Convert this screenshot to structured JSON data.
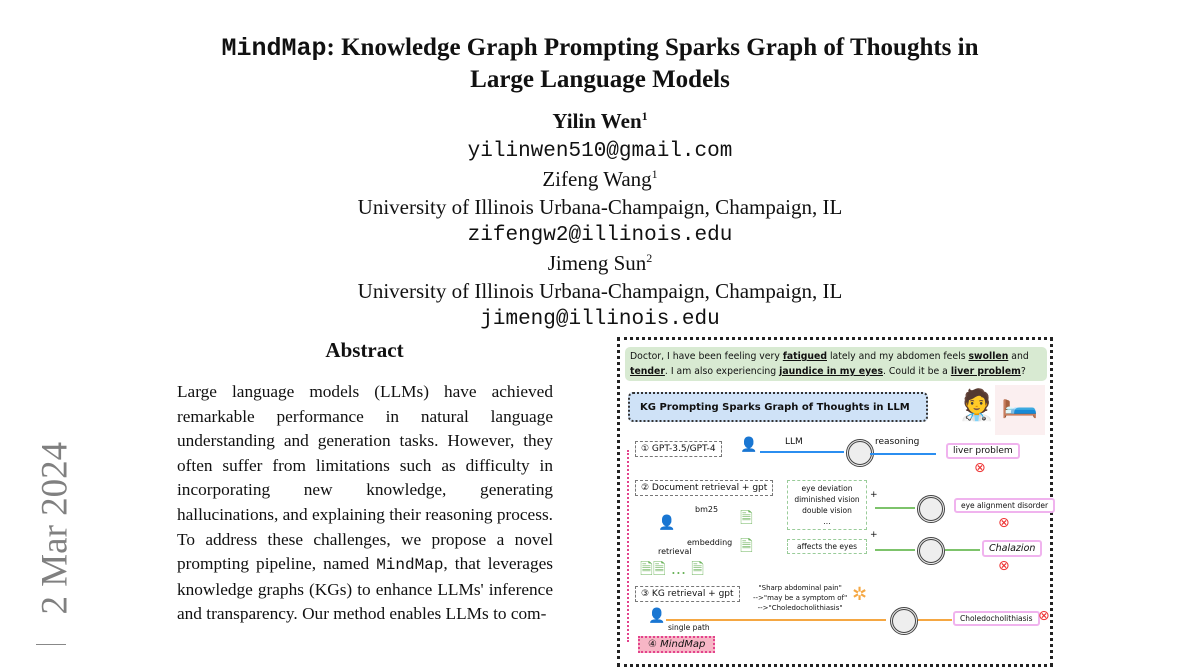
{
  "title": {
    "name_mono": "MindMap",
    "line1_rest": ": Knowledge Graph Prompting Sparks Graph of Thoughts in",
    "line2": "Large Language Models"
  },
  "authors": [
    {
      "name": "Yilin Wen",
      "sup": "1",
      "email": "yilinwen510@gmail.com"
    },
    {
      "name": "Zifeng Wang",
      "sup": "1",
      "affiliation": "University of Illinois Urbana-Champaign, Champaign, IL",
      "email": "zifengw2@illinois.edu"
    },
    {
      "name": "Jimeng Sun",
      "sup": "2",
      "affiliation": "University of Illinois Urbana-Champaign, Champaign, IL",
      "email": "jimeng@illinois.edu"
    }
  ],
  "abstract": {
    "heading": "Abstract",
    "text_before": "Large language models (LLMs) have achieved remarkable performance in natural language understanding and generation tasks. However, they often suffer from limitations such as difficulty in incorporating new knowledge, generating hallucinations, and explaining their reasoning process. To address these challenges, we propose a novel prompting pipeline, named ",
    "mono": "MindMap",
    "text_after": ", that leverages knowledge graphs (KGs) to enhance LLMs' inference and transparency. Our method enables LLMs to com-"
  },
  "arxiv_stamp": "2 Mar 2024",
  "figure": {
    "question": {
      "p1": "Doctor, I have been feeling very ",
      "u1": "fatigued",
      "p2": " lately and my abdomen feels ",
      "u2": "swollen",
      "p3": " and ",
      "u3": "tender",
      "p4": ". I am also experiencing ",
      "u4": "jaundice in my eyes",
      "p5": ". Could it be a ",
      "u5": "liver problem",
      "p6": "?"
    },
    "banner": "KG Prompting Sparks Graph of Thoughts in LLM",
    "m1": {
      "label": "① GPT-3.5/GPT-4",
      "llm": "LLM",
      "reasoning": "reasoning",
      "answer": "liver problem"
    },
    "m2": {
      "label": "② Document retrieval + gpt",
      "bm25": "bm25",
      "embedding": "embedding",
      "retrieval": "retrieval",
      "ellipsis": "...",
      "doc1": [
        "eye deviation",
        "diminished vision",
        "double vision",
        "..."
      ],
      "doc2": "affects the eyes",
      "answer1": "eye alignment disorder",
      "answer2": "Chalazion",
      "plus": "+"
    },
    "m3": {
      "label": "③ KG retrieval + gpt",
      "path": [
        "\"Sharp abdominal pain\"",
        "-->\"may be a symptom of\"",
        "-->\"Choledocholithiasis\""
      ],
      "single_path": "single path",
      "answer": "Choledocholithiasis"
    },
    "m4": {
      "label": "④ MindMap"
    },
    "colors": {
      "green_box": "#d8ead2",
      "blue_banner": "#cfe2f7",
      "blue_arrow": "#2b8ef0",
      "green_arrow": "#7dc36b",
      "orange_arrow": "#f5a742",
      "pink": "#e3428c",
      "wrong": "#e33333"
    }
  }
}
